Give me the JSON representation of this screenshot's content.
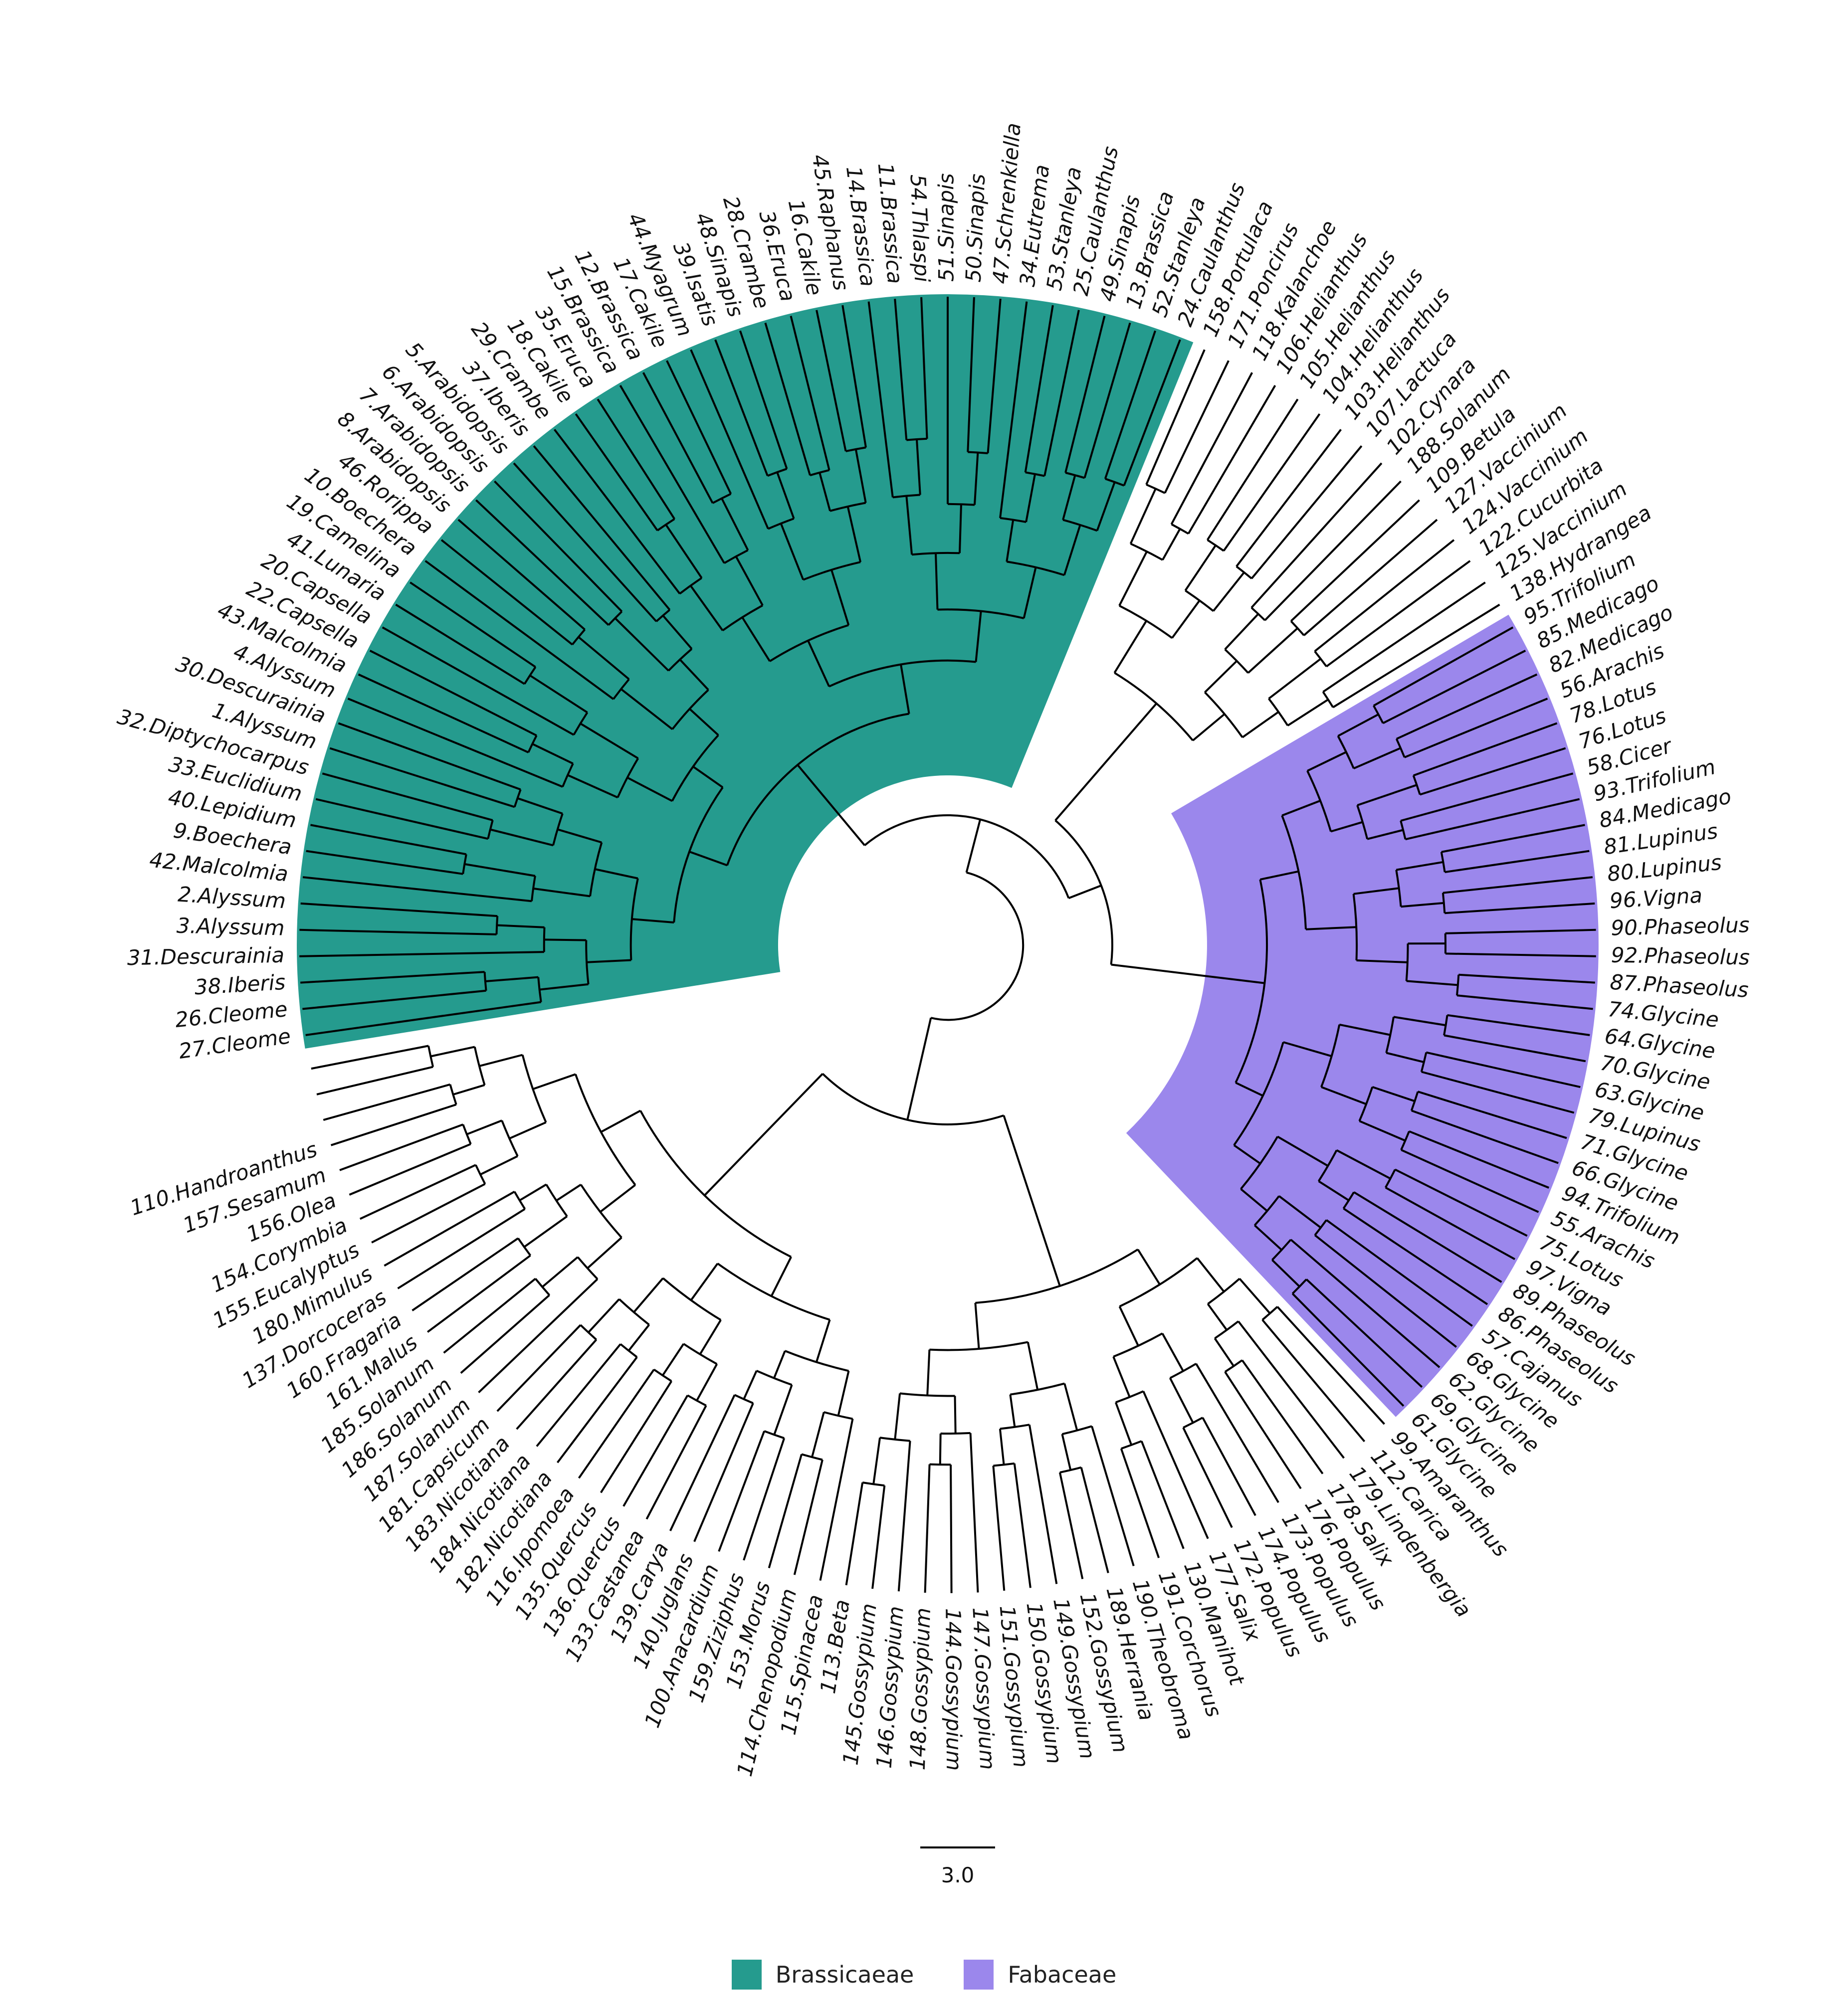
{
  "tree": {
    "leaves": [
      "27.Cleome",
      "26.Cleome",
      "38.Iberis",
      "31.Descurainia",
      "3.Alyssum",
      "2.Alyssum",
      "42.Malcolmia",
      "9.Boechera",
      "40.Lepidium",
      "33.Euclidium",
      "32.Diptychocarpus",
      "1.Alyssum",
      "30.Descurainia",
      "4.Alyssum",
      "43.Malcolmia",
      "22.Capsella",
      "20.Capsella",
      "41.Lunaria",
      "19.Camelina",
      "10.Boechera",
      "46.Rorippa",
      "8.Arabidopsis",
      "7.Arabidopsis",
      "6.Arabidopsis",
      "5.Arabidopsis",
      "37.Iberis",
      "29.Crambe",
      "18.Cakile",
      "35.Eruca",
      "15.Brassica",
      "12.Brassica",
      "17.Cakile",
      "44.Myagrum",
      "39.Isatis",
      "48.Sinapis",
      "28.Crambe",
      "36.Eruca",
      "16.Cakile",
      "45.Raphanus",
      "14.Brassica",
      "11.Brassica",
      "54.Thlaspi",
      "51.Sinapis",
      "50.Sinapis",
      "47.Schrenkiella",
      "34.Eutrema",
      "53.Stanleya",
      "25.Caulanthus",
      "49.Sinapis",
      "13.Brassica",
      "52.Stanleya",
      "24.Caulanthus",
      "158.Portulaca",
      "171.Poncirus",
      "118.Kalanchoe",
      "106.Helianthus",
      "105.Helianthus",
      "104.Helianthus",
      "103.Helianthus",
      "107.Lactuca",
      "102.Cynara",
      "188.Solanum",
      "109.Betula",
      "127.Vaccinium",
      "124.Vaccinium",
      "122.Cucurbita",
      "125.Vaccinium",
      "138.Hydrangea",
      "95.Trifolium",
      "85.Medicago",
      "82.Medicago",
      "56.Arachis",
      "78.Lotus",
      "76.Lotus",
      "58.Cicer",
      "93.Trifolium",
      "84.Medicago",
      "81.Lupinus",
      "80.Lupinus",
      "96.Vigna",
      "90.Phaseolus",
      "92.Phaseolus",
      "87.Phaseolus",
      "74.Glycine",
      "64.Glycine",
      "70.Glycine",
      "63.Glycine",
      "79.Lupinus",
      "71.Glycine",
      "66.Glycine",
      "94.Trifolium",
      "55.Arachis",
      "75.Lotus",
      "97.Vigna",
      "89.Phaseolus",
      "86.Phaseolus",
      "57.Cajanus",
      "68.Glycine",
      "62.Glycine",
      "69.Glycine",
      "61.Glycine",
      "99.Amaranthus",
      "112.Carica",
      "179.Lindenbergia",
      "178.Salix",
      "176.Populus",
      "173.Populus",
      "174.Populus",
      "172.Populus",
      "177.Salix",
      "130.Manihot",
      "191.Corchorus",
      "190.Theobroma",
      "189.Herrania",
      "152.Gossypium",
      "149.Gossypium",
      "150.Gossypium",
      "151.Gossypium",
      "147.Gossypium",
      "144.Gossypium",
      "148.Gossypium",
      "146.Gossypium",
      "145.Gossypium",
      "113.Beta",
      "115.Spinacea",
      "114.Chenopodium",
      "153.Morus",
      "159.Ziziphus",
      "100.Anacardium",
      "140.Juglans",
      "139.Carya",
      "133.Castanea",
      "136.Quercus",
      "135.Quercus",
      "116.Ipomoea",
      "182.Nicotiana",
      "184.Nicotiana",
      "183.Nicotiana",
      "181.Capsicum",
      "187.Solanum",
      "186.Solanum",
      "185.Solanum",
      "161.Malus",
      "160.Fragaria",
      "137.Dorcoceras",
      "180.Mimulus",
      "155.Eucalyptus",
      "154.Corymbia",
      "156.Olea",
      "157.Sesamum",
      "110.Handroanthus"
    ]
  },
  "scale_bar": {
    "label": "3.0"
  },
  "legend": {
    "items": [
      {
        "label": "Brassicaeae",
        "color": "#259b8e"
      },
      {
        "label": "Fabaceae",
        "color": "#9b87ec"
      }
    ]
  }
}
